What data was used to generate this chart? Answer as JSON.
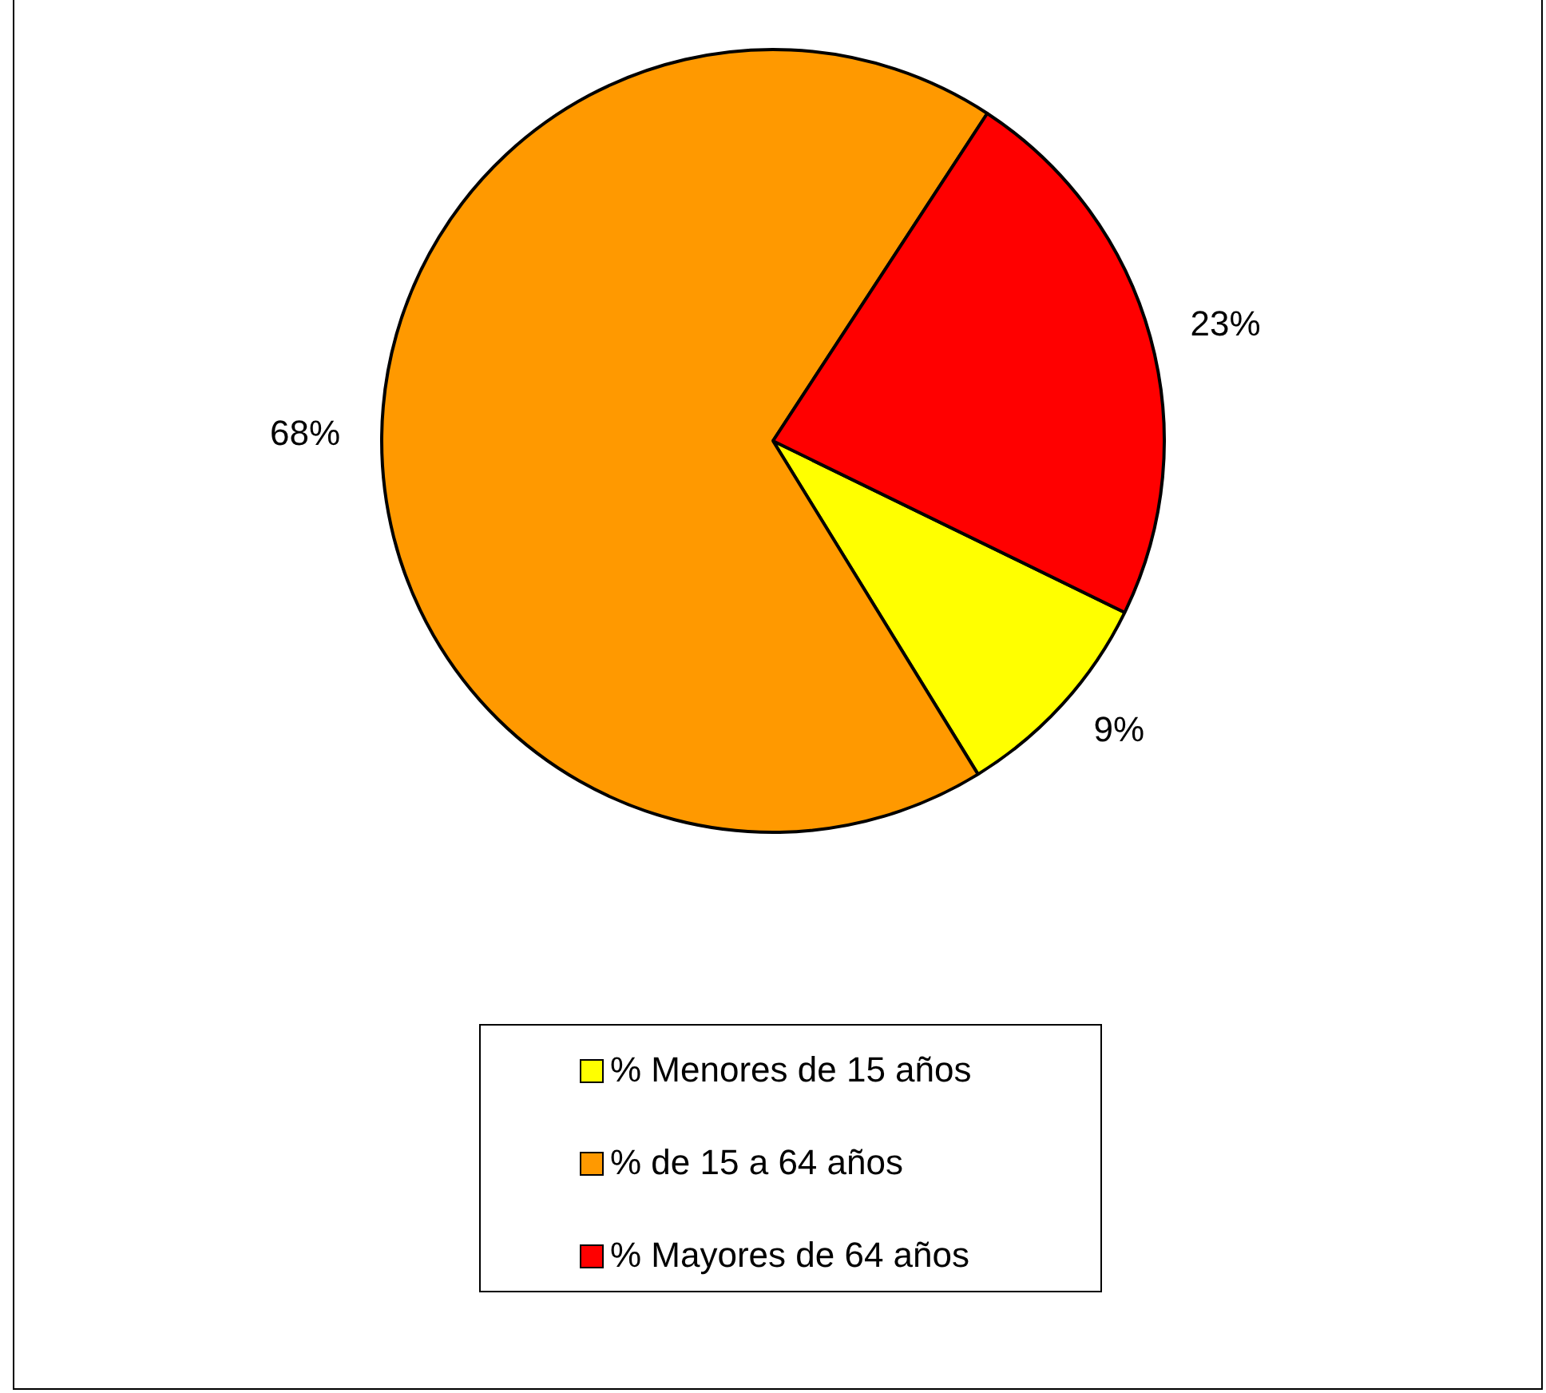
{
  "chart_data": {
    "type": "pie",
    "categories": [
      "% Menores de 15 años",
      "% de 15 a 64 años",
      "% Mayores de 64 años"
    ],
    "values": [
      9,
      68,
      23
    ],
    "colors": [
      "#ffff00",
      "#ff9900",
      "#ff0000"
    ],
    "value_labels": [
      "9%",
      "68%",
      "23%"
    ],
    "legend": "bottom"
  }
}
